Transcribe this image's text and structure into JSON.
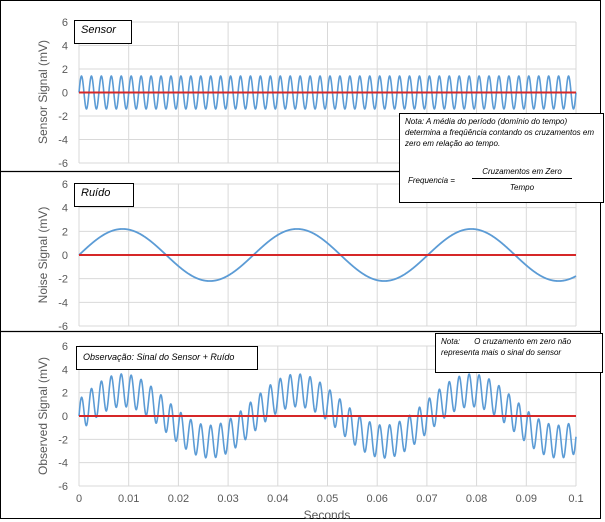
{
  "charts": {
    "panels": [
      {
        "ylabel": "Sensor Signal (mV)",
        "tag": "Sensor",
        "yticks": [
          "6",
          "4",
          "2",
          "0",
          "-2",
          "-4",
          "-6"
        ],
        "xticks": [
          "",
          "",
          "",
          "",
          "",
          "",
          "",
          "",
          "",
          "",
          ""
        ]
      },
      {
        "ylabel": "Noise Signal (mV)",
        "tag": "Ruído",
        "yticks": [
          "6",
          "4",
          "2",
          "0",
          "-2",
          "-4",
          "-6"
        ],
        "xticks": [
          "",
          "",
          "",
          "",
          "",
          "",
          "",
          "",
          "",
          "",
          ""
        ]
      },
      {
        "ylabel": "Observed Signal (mV)",
        "tag": "Observação: Sinal do Sensor + Ruído",
        "yticks": [
          "6",
          "4",
          "2",
          "0",
          "-2",
          "-4",
          "-6"
        ],
        "xticks": [
          "0",
          "0.01",
          "0.02",
          "0.03",
          "0.04",
          "0.05",
          "0.06",
          "0.07",
          "0.08",
          "0.09",
          "0.1"
        ]
      }
    ],
    "xlabel": "Seconds"
  },
  "notes": {
    "note1_text": "Nota: A média do período (domínio do tempo) determina a freqüência contando os cruzamentos em zero em relação ao tempo.",
    "formula_lhs": "Frequencia =",
    "formula_num": "Cruzamentos em Zero",
    "formula_den": "Tempo",
    "note2_prefix": "Nota:",
    "note2_text": "O cruzamento em zero não representa mais o sinal do sensor"
  },
  "colors": {
    "signal": "#5b9bd5",
    "zero_line": "#d62728",
    "grid": "#d9d9d9",
    "axis_text": "#595959"
  },
  "chart_data": [
    {
      "type": "line",
      "title": "",
      "xlabel": "Seconds",
      "ylabel": "Sensor Signal (mV)",
      "xlim": [
        0,
        0.1
      ],
      "ylim": [
        -6,
        6
      ],
      "grid": true,
      "series": [
        {
          "name": "",
          "function": "sine",
          "amplitude": 1.4,
          "frequency_hz": 500,
          "phase_deg": 0,
          "offset": 0
        },
        {
          "name": "",
          "function": "constant",
          "value": 0
        }
      ]
    },
    {
      "type": "line",
      "title": "",
      "xlabel": "Seconds",
      "ylabel": "Noise Signal (mV)",
      "xlim": [
        0,
        0.1
      ],
      "ylim": [
        -6,
        6
      ],
      "grid": true,
      "series": [
        {
          "name": "",
          "function": "sine",
          "amplitude": 2.2,
          "frequency_hz": 28.5,
          "phase_deg": 0,
          "offset": 0
        },
        {
          "name": "",
          "function": "constant",
          "value": 0
        }
      ]
    },
    {
      "type": "line",
      "title": "",
      "xlabel": "Seconds",
      "ylabel": "Observed Signal (mV)",
      "xlim": [
        0,
        0.1
      ],
      "ylim": [
        -6,
        6
      ],
      "grid": true,
      "series": [
        {
          "name": "",
          "function": "sum of sensor and noise sines",
          "components": [
            {
              "amplitude": 1.4,
              "frequency_hz": 500
            },
            {
              "amplitude": 2.2,
              "frequency_hz": 28.5
            }
          ]
        },
        {
          "name": "",
          "function": "constant",
          "value": 0
        }
      ]
    }
  ]
}
